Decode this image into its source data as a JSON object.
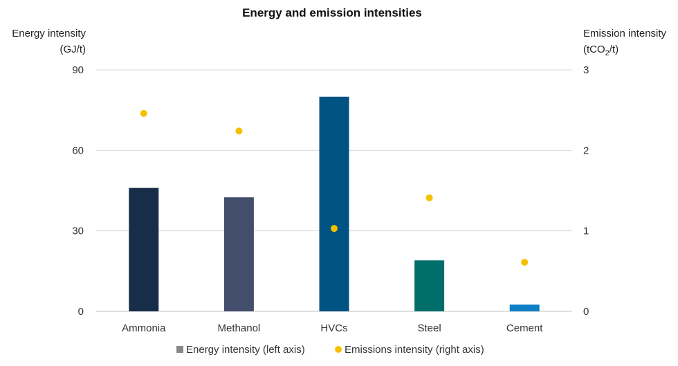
{
  "chart_data": {
    "type": "bar",
    "title": "Energy and emission intensities",
    "left_axis": {
      "label_line1": "Energy intensity",
      "label_line2": "(GJ/t)",
      "ylim": [
        0,
        90
      ],
      "ticks": [
        0,
        30,
        60,
        90
      ]
    },
    "right_axis": {
      "label_line1": "Emission intensity",
      "label_line2_pre": "(tCO",
      "label_line2_sub": "2",
      "label_line2_post": "/t)",
      "ylim": [
        0,
        3
      ],
      "ticks": [
        0,
        1,
        2,
        3
      ]
    },
    "categories": [
      "Ammonia",
      "Methanol",
      "HVCs",
      "Steel",
      "Cement"
    ],
    "series": [
      {
        "name": "Energy intensity (left axis)",
        "kind": "bar",
        "axis": "left",
        "values": [
          46,
          42.5,
          80,
          19,
          2.5
        ],
        "colors": [
          "#182d4a",
          "#434d6c",
          "#005283",
          "#006e6b",
          "#0e7ec6"
        ],
        "legend_color": "#888888"
      },
      {
        "name": "Emissions intensity (right axis)",
        "kind": "scatter",
        "axis": "right",
        "values": [
          2.46,
          2.24,
          1.03,
          1.41,
          0.61
        ],
        "color": "#f5c000"
      }
    ],
    "grid": true,
    "legend_position": "bottom"
  }
}
